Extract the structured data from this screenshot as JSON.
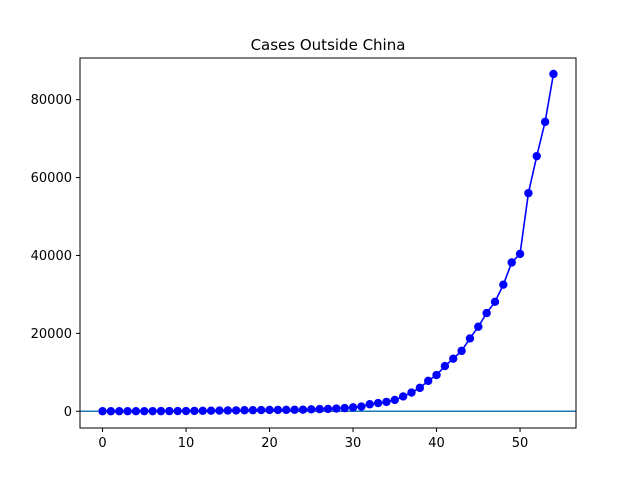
{
  "chart_data": {
    "type": "line",
    "title": "Cases Outside China",
    "xlabel": "",
    "ylabel": "",
    "xlim": [
      -2.7,
      56.7
    ],
    "ylim": [
      -4300,
      90700
    ],
    "xticks": [
      0,
      10,
      20,
      30,
      40,
      50
    ],
    "yticks": [
      0,
      20000,
      40000,
      60000,
      80000
    ],
    "grid": false,
    "colors": {
      "series": "#0000ff",
      "reference_line": "#1f77b4"
    },
    "reference_line": {
      "y": 0
    },
    "series": [
      {
        "x": [
          0,
          1,
          2,
          3,
          4,
          5,
          6,
          7,
          8,
          9,
          10,
          11,
          12,
          13,
          14,
          15,
          16,
          17,
          18,
          19,
          20,
          21,
          22,
          23,
          24,
          25,
          26,
          27,
          28,
          29,
          30,
          31,
          32,
          33,
          34,
          35,
          36,
          37,
          38,
          39,
          40,
          41,
          42,
          43,
          44,
          45,
          46,
          47,
          48,
          49,
          50,
          51,
          52,
          53,
          54
        ],
        "values": [
          7,
          8,
          10,
          10,
          15,
          20,
          25,
          30,
          40,
          50,
          60,
          90,
          110,
          140,
          170,
          200,
          220,
          260,
          280,
          300,
          340,
          350,
          360,
          380,
          400,
          500,
          550,
          600,
          700,
          800,
          1000,
          1200,
          1800,
          2100,
          2400,
          2900,
          3800,
          4800,
          6000,
          7800,
          9300,
          11600,
          13500,
          15500,
          18700,
          21700,
          25200,
          28100,
          32500,
          38200,
          40400,
          56000,
          65500,
          74300,
          86600
        ]
      }
    ]
  }
}
